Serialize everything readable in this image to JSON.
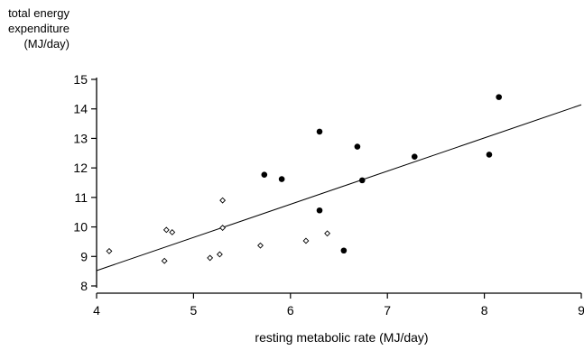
{
  "chart_data": {
    "type": "scatter",
    "title": "",
    "ylabel_lines": [
      "total energy",
      "expenditure",
      "(MJ/day)"
    ],
    "xlabel": "resting metabolic rate (MJ/day)",
    "xlim": [
      4,
      9
    ],
    "ylim": [
      8,
      15
    ],
    "xticks": [
      4,
      5,
      6,
      7,
      8,
      9
    ],
    "yticks": [
      8,
      9,
      10,
      11,
      12,
      13,
      14,
      15
    ],
    "grid": false,
    "series": [
      {
        "marker": "open-diamond",
        "points": [
          [
            4.13,
            9.18
          ],
          [
            4.7,
            8.85
          ],
          [
            4.72,
            9.9
          ],
          [
            4.78,
            9.82
          ],
          [
            5.17,
            8.95
          ],
          [
            5.27,
            9.07
          ],
          [
            5.3,
            10.9
          ],
          [
            5.3,
            9.97
          ],
          [
            5.69,
            9.37
          ],
          [
            6.16,
            9.53
          ],
          [
            6.38,
            9.78
          ]
        ]
      },
      {
        "marker": "filled-circle",
        "points": [
          [
            5.73,
            11.77
          ],
          [
            5.91,
            11.62
          ],
          [
            6.3,
            13.23
          ],
          [
            6.3,
            10.56
          ],
          [
            6.55,
            9.2
          ],
          [
            6.69,
            12.72
          ],
          [
            6.74,
            11.58
          ],
          [
            7.28,
            12.38
          ],
          [
            8.05,
            12.45
          ],
          [
            8.15,
            14.4
          ]
        ]
      }
    ],
    "regression_line": {
      "x": [
        4,
        9
      ],
      "y": [
        8.52,
        14.14
      ]
    }
  }
}
